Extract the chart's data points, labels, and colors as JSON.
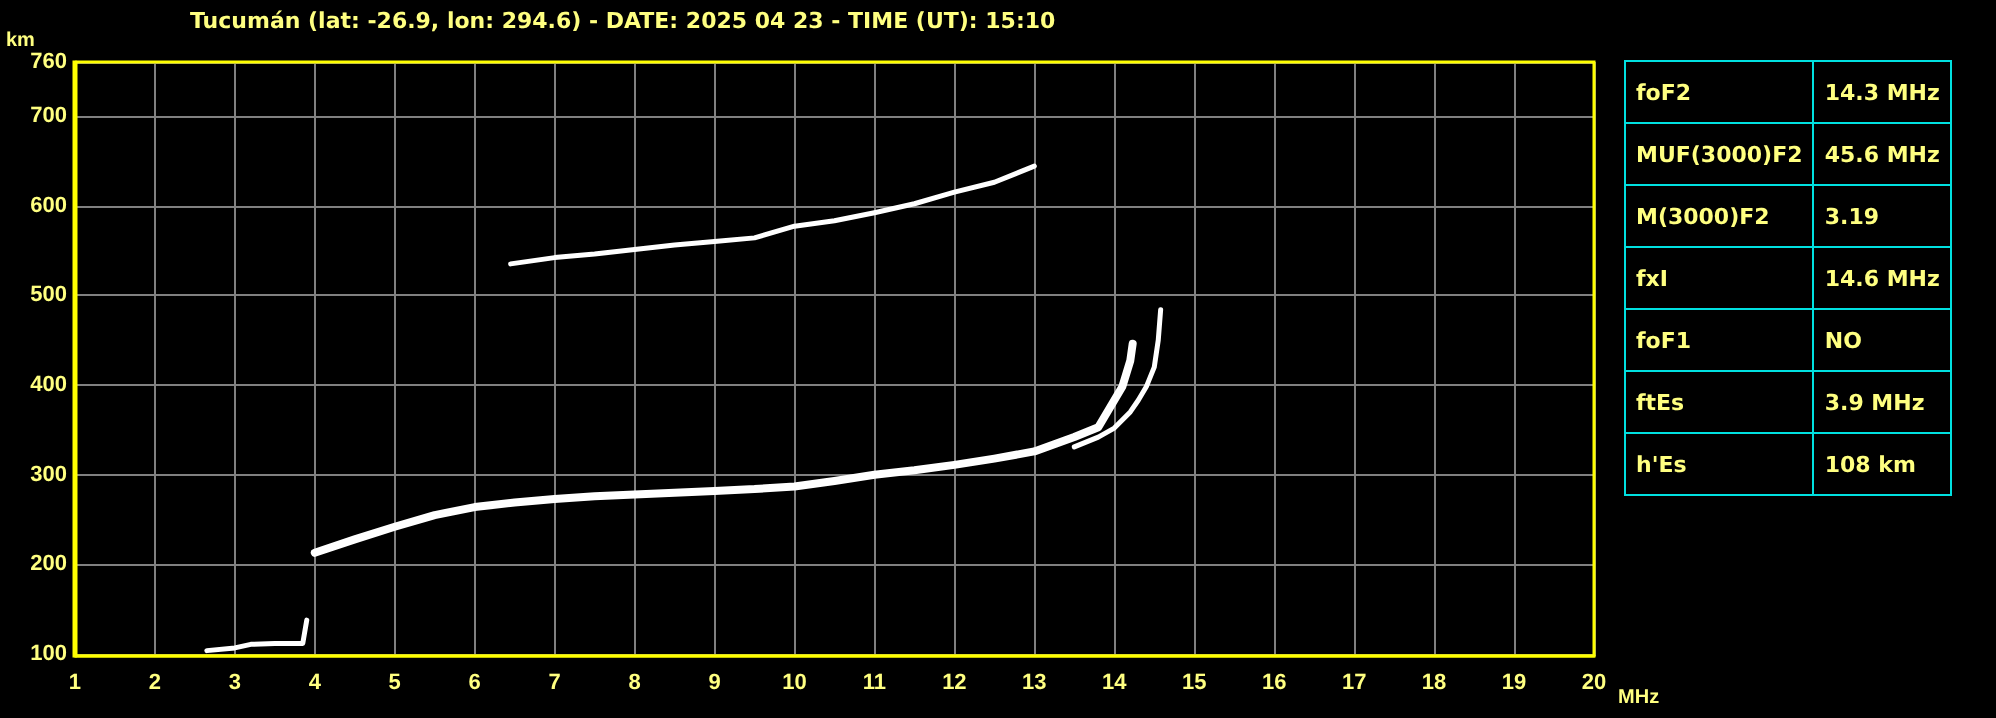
{
  "chart_data": [
    {
      "type": "line",
      "title": "Tucumán (lat: -26.9, lon: 294.6) - DATE: 2025 04 23 - TIME (UT): 15:10",
      "xlabel": "MHz",
      "ylabel": "km",
      "xlim": [
        1,
        20
      ],
      "ylim": [
        98,
        760
      ],
      "xticks": [
        1,
        2,
        3,
        4,
        5,
        6,
        7,
        8,
        9,
        10,
        11,
        12,
        13,
        14,
        15,
        16,
        17,
        18,
        19,
        20
      ],
      "yticks": [
        100,
        200,
        300,
        400,
        500,
        600,
        700,
        760
      ],
      "grid": true,
      "series": [
        {
          "color": "#ffffff",
          "x": [
            2.65,
            3.0,
            3.2,
            3.5,
            3.85,
            3.9
          ],
          "values": [
            104,
            107,
            111,
            112,
            112,
            138
          ]
        },
        {
          "color": "#ffffff",
          "x": [
            4.0,
            4.5,
            5,
            5.5,
            6,
            6.5,
            7,
            7.5,
            8,
            8.5,
            9,
            9.5,
            10,
            10.5,
            11,
            11.5,
            12,
            12.5,
            13,
            13.5,
            13.8,
            14.0,
            14.1,
            14.2,
            14.23
          ],
          "values": [
            213,
            228,
            242,
            255,
            264,
            269,
            273,
            276,
            278,
            280,
            282,
            284,
            287,
            293,
            300,
            305,
            311,
            318,
            326,
            342,
            353,
            383,
            398,
            427,
            446
          ]
        },
        {
          "color": "#ffffff",
          "x": [
            13.5,
            13.8,
            14.0,
            14.2,
            14.3,
            14.4,
            14.5,
            14.55,
            14.58
          ],
          "values": [
            331,
            342,
            352,
            370,
            383,
            398,
            420,
            450,
            484
          ]
        },
        {
          "color": "#ffffff",
          "x": [
            6.45,
            7,
            7.5,
            8,
            8.5,
            9,
            9.5,
            10,
            10.5,
            11,
            11.5,
            12,
            12.5,
            13
          ],
          "values": [
            535,
            542,
            546,
            551,
            556,
            560,
            564,
            577,
            583,
            592,
            602,
            615,
            626,
            644
          ]
        }
      ]
    },
    {
      "type": "other",
      "annotations": [
        "foF2",
        "14.3 MHz",
        "MUF(3000)F2",
        "45.6 MHz",
        "M(3000)F2",
        "3.19",
        "fxI",
        "14.6 MHz",
        "foF1",
        "NO",
        "ftEs",
        "3.9 MHz",
        "h'Es",
        "108 km"
      ]
    }
  ]
}
